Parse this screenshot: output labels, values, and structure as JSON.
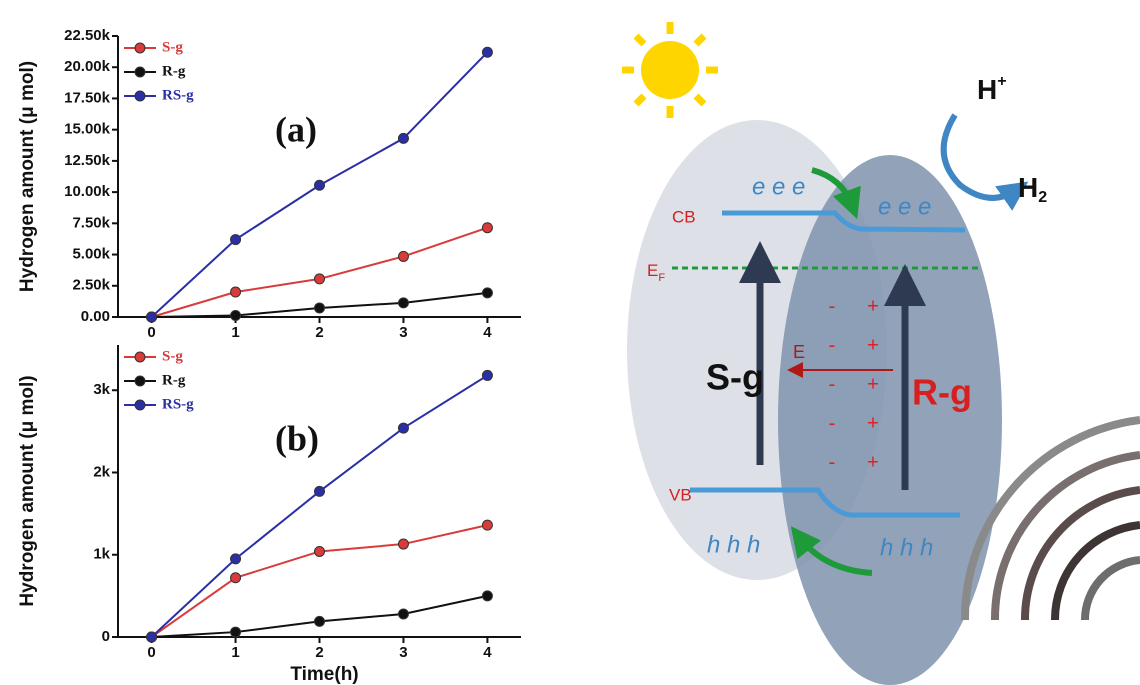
{
  "chart_data": [
    {
      "type": "line",
      "ylabel": "Hydrogen amount (μ mol)",
      "annotation": "(a)",
      "x": [
        0,
        1,
        2,
        3,
        4
      ],
      "xlim": [
        -0.4,
        4.4
      ],
      "xticks": [
        0,
        1,
        2,
        3,
        4
      ],
      "ylim": [
        0,
        22500
      ],
      "yticks": [
        {
          "value": 0,
          "label": "0.00"
        },
        {
          "value": 2500,
          "label": "2.50k"
        },
        {
          "value": 5000,
          "label": "5.00k"
        },
        {
          "value": 7500,
          "label": "7.50k"
        },
        {
          "value": 10000,
          "label": "10.00k"
        },
        {
          "value": 12500,
          "label": "12.50k"
        },
        {
          "value": 15000,
          "label": "15.00k"
        },
        {
          "value": 17500,
          "label": "17.50k"
        },
        {
          "value": 20000,
          "label": "20.00k"
        },
        {
          "value": 22500,
          "label": "22.50k"
        }
      ],
      "legend": "upper left",
      "series": [
        {
          "name": "S-g",
          "color": "#d93a3a",
          "values": [
            0,
            2000,
            3050,
            4850,
            7150
          ]
        },
        {
          "name": "R-g",
          "color": "#111111",
          "values": [
            0,
            120,
            725,
            1130,
            1935
          ]
        },
        {
          "name": "RS-g",
          "color": "#2b2fa6",
          "values": [
            0,
            6200,
            10550,
            14300,
            21200
          ]
        }
      ]
    },
    {
      "type": "line",
      "ylabel": "Hydrogen amount (μ mol)",
      "xlabel": "Time(h)",
      "annotation": "(b)",
      "x": [
        0,
        1,
        2,
        3,
        4
      ],
      "xlim": [
        -0.4,
        4.4
      ],
      "xticks": [
        0,
        1,
        2,
        3,
        4
      ],
      "ylim": [
        0,
        3550
      ],
      "yticks": [
        0,
        {
          "value": 1000,
          "label": "1k"
        },
        {
          "value": 2000,
          "label": "2k"
        },
        {
          "value": 3000,
          "label": "3k"
        }
      ],
      "legend": "upper left",
      "series": [
        {
          "name": "S-g",
          "color": "#d93a3a",
          "values": [
            0,
            720,
            1040,
            1130,
            1360
          ]
        },
        {
          "name": "R-g",
          "color": "#111111",
          "values": [
            0,
            60,
            190,
            280,
            500
          ]
        },
        {
          "name": "RS-g",
          "color": "#2b2fa6",
          "values": [
            0,
            950,
            1770,
            2540,
            3180
          ]
        }
      ]
    }
  ],
  "diagram": {
    "h_plus": {
      "text": "H",
      "sup": "+"
    },
    "h2": {
      "text": "H",
      "sub": "2"
    },
    "electrons_left": "e e e",
    "electrons_right": "e e e",
    "cb": "CB",
    "fermi": {
      "text": "E",
      "sub": "F"
    },
    "s_g": "S-g",
    "field": "E",
    "r_g": "R-g",
    "vb": "VB",
    "holes_left": "h h h",
    "holes_right": "h h h",
    "charges": [
      [
        "-",
        "+"
      ],
      [
        "-",
        "+"
      ],
      [
        "-",
        "+"
      ],
      [
        "-",
        "+"
      ],
      [
        "-",
        "+"
      ]
    ]
  }
}
